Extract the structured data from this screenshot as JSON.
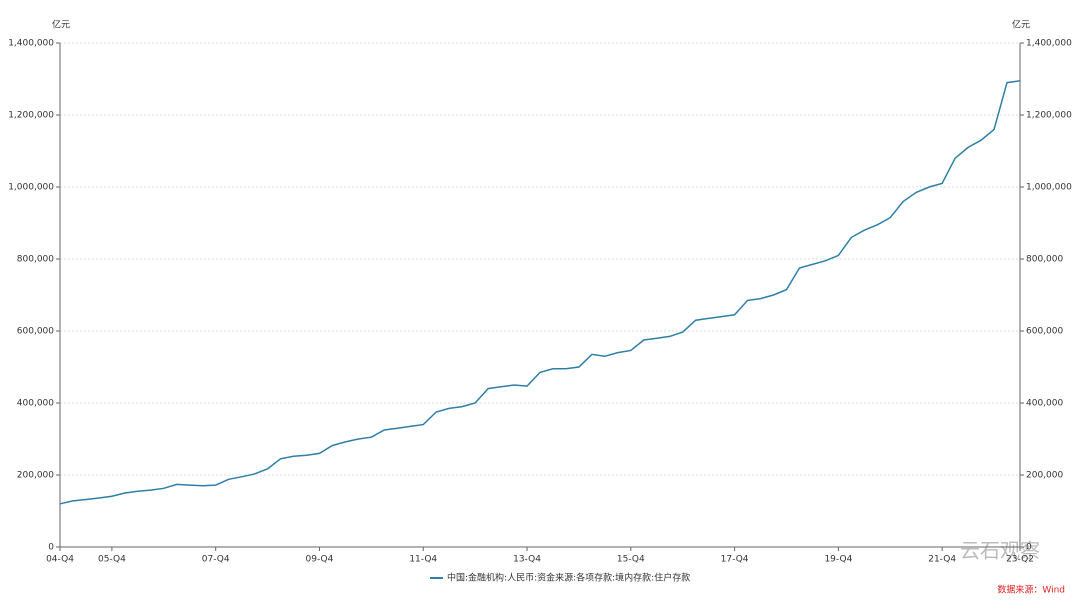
{
  "chart_data": {
    "type": "line",
    "y_unit": "亿元",
    "categories": [
      "04-Q4",
      null,
      null,
      null,
      "05-Q4",
      null,
      null,
      null,
      null,
      null,
      null,
      null,
      "07-Q4",
      null,
      null,
      null,
      null,
      null,
      null,
      null,
      "09-Q4",
      null,
      null,
      null,
      null,
      null,
      null,
      null,
      "11-Q4",
      null,
      null,
      null,
      null,
      null,
      null,
      null,
      "13-Q4",
      null,
      null,
      null,
      null,
      null,
      null,
      null,
      "15-Q4",
      null,
      null,
      null,
      null,
      null,
      null,
      null,
      "17-Q4",
      null,
      null,
      null,
      null,
      null,
      null,
      null,
      "19-Q4",
      null,
      null,
      null,
      null,
      null,
      null,
      null,
      "21-Q4",
      null,
      null,
      null,
      null,
      null,
      "23-Q2"
    ],
    "series": [
      {
        "name": "中国:金融机构:人民币:资金来源:各项存款:境内存款:住户存款",
        "color": "#2e7fa8",
        "values": [
          120000,
          128000,
          132000,
          136000,
          141000,
          150000,
          155000,
          158000,
          163000,
          174000,
          172000,
          170000,
          172000,
          188000,
          195000,
          203000,
          217000,
          245000,
          252000,
          255000,
          260000,
          282000,
          292000,
          300000,
          305000,
          325000,
          330000,
          335000,
          340000,
          375000,
          385000,
          390000,
          400000,
          440000,
          445000,
          450000,
          447000,
          485000,
          495000,
          495000,
          500000,
          535000,
          530000,
          540000,
          546000,
          575000,
          580000,
          585000,
          597000,
          630000,
          635000,
          640000,
          645000,
          685000,
          690000,
          700000,
          715000,
          775000,
          785000,
          795000,
          810000,
          860000,
          880000,
          895000,
          915000,
          960000,
          985000,
          1000000,
          1010000,
          1080000,
          1110000,
          1130000,
          1160000,
          1290000,
          1295000
        ]
      }
    ],
    "ylim": [
      0,
      1400000
    ],
    "yticks": [
      0,
      {
        "value": 200000,
        "label": "200,000"
      },
      {
        "value": 400000,
        "label": "400,000"
      },
      {
        "value": 600000,
        "label": "600,000"
      },
      {
        "value": 800000,
        "label": "800,000"
      },
      {
        "value": 1000000,
        "label": "1,000,000"
      },
      {
        "value": 1200000,
        "label": "1,200,000"
      },
      {
        "value": 1400000,
        "label": "1,400,000"
      }
    ],
    "y2lim": [
      0,
      1400000
    ],
    "y2ticks": [
      0,
      {
        "value": 200000,
        "label": "200,000"
      },
      {
        "value": 400000,
        "label": "400,000"
      },
      {
        "value": 600000,
        "label": "600,000"
      },
      {
        "value": 800000,
        "label": "800,000"
      },
      {
        "value": 1000000,
        "label": "1,000,000"
      },
      {
        "value": 1200000,
        "label": "1,200,000"
      },
      {
        "value": 1400000,
        "label": "1,400,000"
      }
    ],
    "grid": true,
    "legend": "bottom",
    "watermark": "云石观察",
    "source": "数据来源：Wind"
  }
}
